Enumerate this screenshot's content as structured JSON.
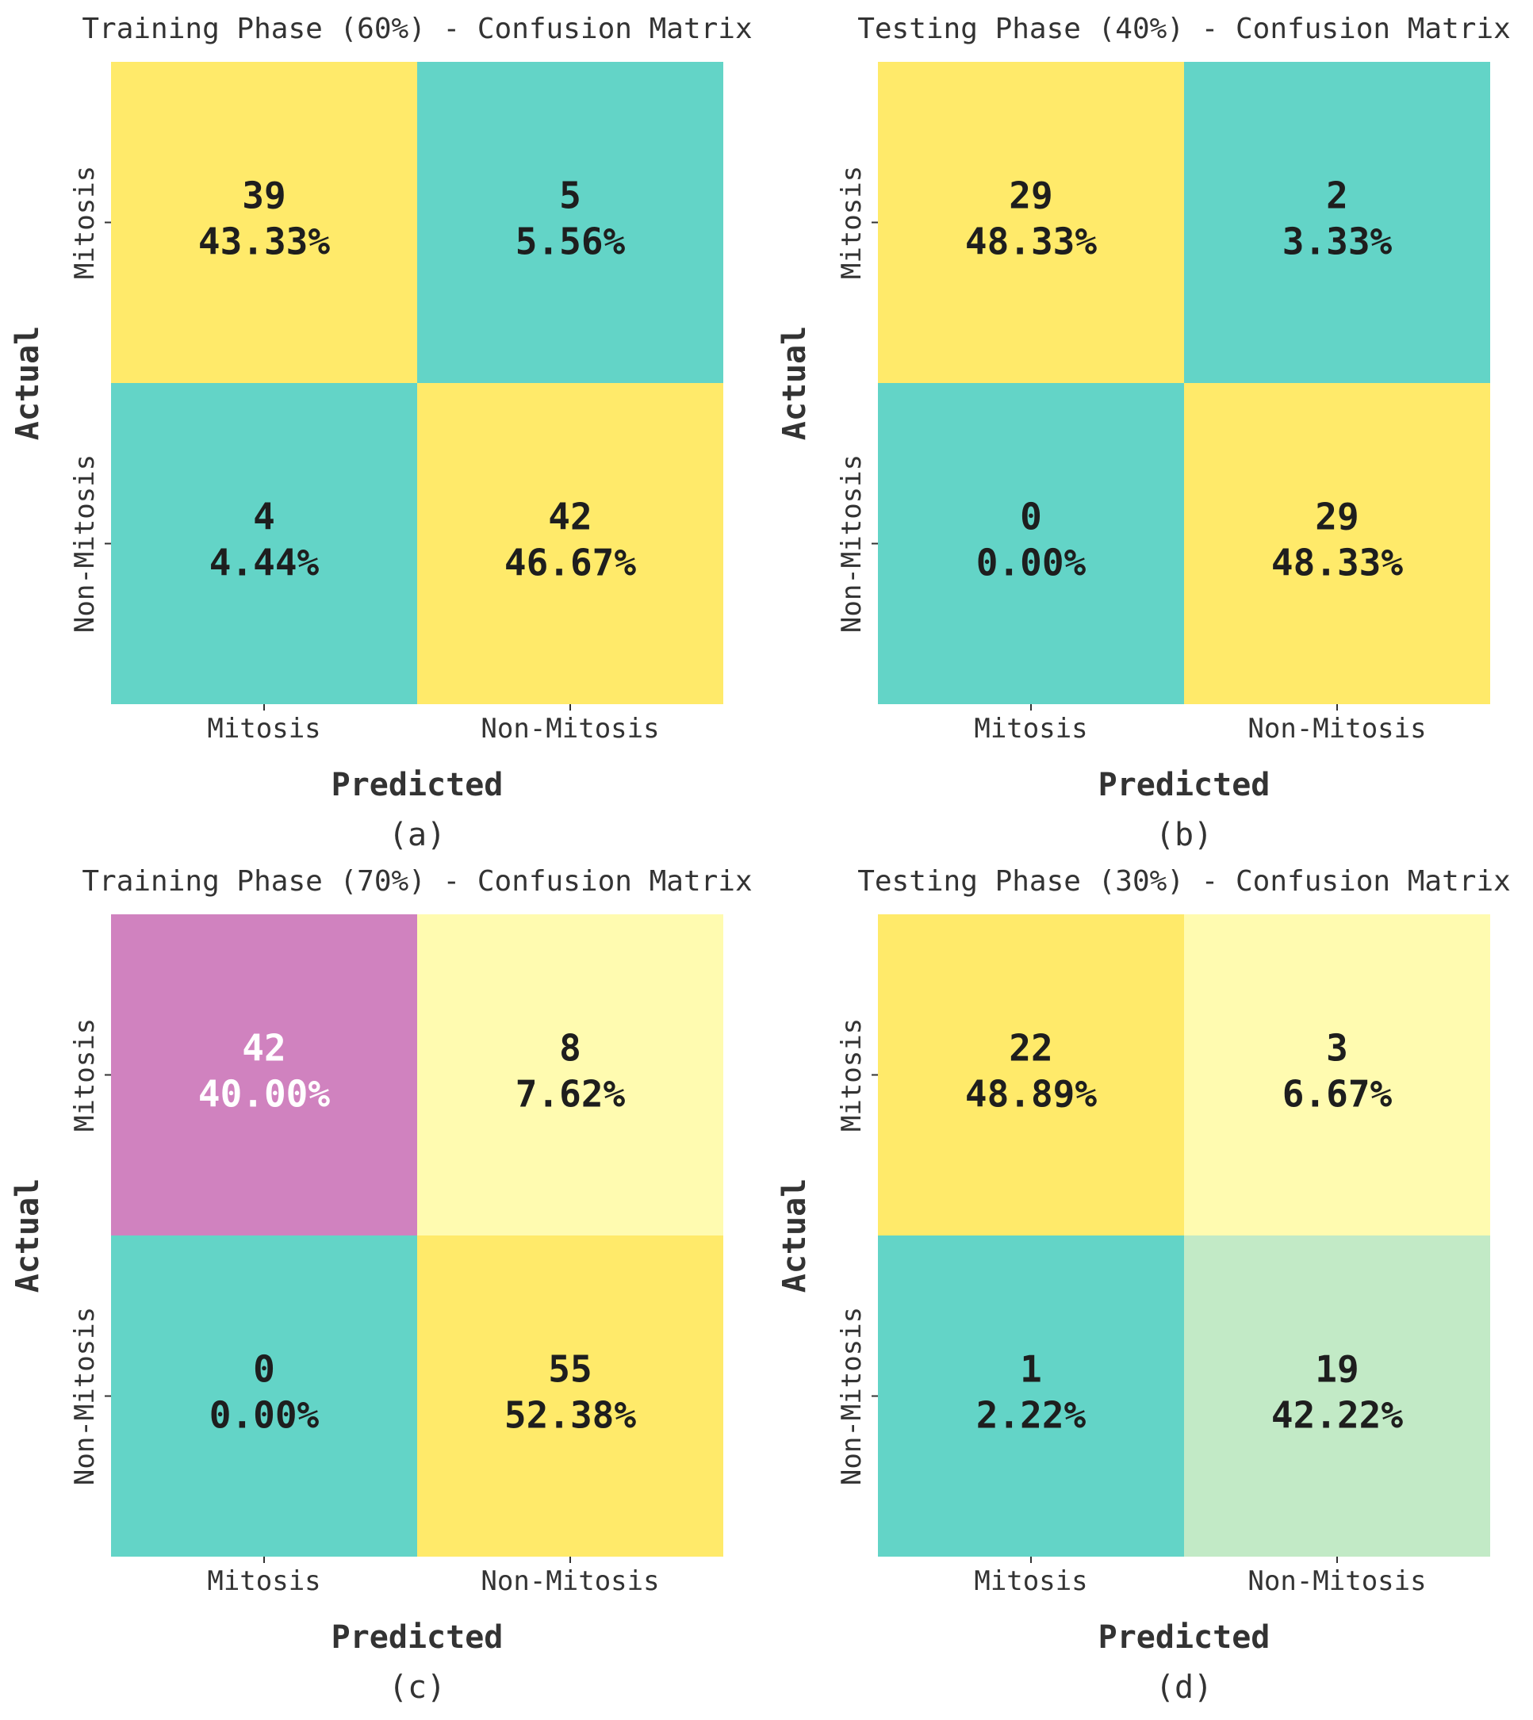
{
  "chart_data": [
    {
      "type": "heatmap",
      "title": "Training Phase (60%) - Confusion Matrix",
      "xlabel": "Predicted",
      "ylabel": "Actual",
      "x_categories": [
        "Mitosis",
        "Non-Mitosis"
      ],
      "y_categories": [
        "Mitosis",
        "Non-Mitosis"
      ],
      "counts": [
        [
          39,
          5
        ],
        [
          4,
          42
        ]
      ],
      "percentages": [
        [
          "43.33%",
          "5.56%"
        ],
        [
          "4.44%",
          "46.67%"
        ]
      ],
      "cell_colors": [
        [
          "#ffea6a",
          "#63d4c7"
        ],
        [
          "#63d4c7",
          "#ffea6a"
        ]
      ],
      "text_colors": [
        [
          "#1e1e1e",
          "#1e1e1e"
        ],
        [
          "#1e1e1e",
          "#1e1e1e"
        ]
      ],
      "caption": "(a)"
    },
    {
      "type": "heatmap",
      "title": "Testing Phase (40%) - Confusion Matrix",
      "xlabel": "Predicted",
      "ylabel": "Actual",
      "x_categories": [
        "Mitosis",
        "Non-Mitosis"
      ],
      "y_categories": [
        "Mitosis",
        "Non-Mitosis"
      ],
      "counts": [
        [
          29,
          2
        ],
        [
          0,
          29
        ]
      ],
      "percentages": [
        [
          "48.33%",
          "3.33%"
        ],
        [
          "0.00%",
          "48.33%"
        ]
      ],
      "cell_colors": [
        [
          "#ffea6a",
          "#63d4c7"
        ],
        [
          "#63d4c7",
          "#ffea6a"
        ]
      ],
      "text_colors": [
        [
          "#1e1e1e",
          "#1e1e1e"
        ],
        [
          "#1e1e1e",
          "#1e1e1e"
        ]
      ],
      "caption": "(b)"
    },
    {
      "type": "heatmap",
      "title": "Training Phase (70%) - Confusion Matrix",
      "xlabel": "Predicted",
      "ylabel": "Actual",
      "x_categories": [
        "Mitosis",
        "Non-Mitosis"
      ],
      "y_categories": [
        "Mitosis",
        "Non-Mitosis"
      ],
      "counts": [
        [
          42,
          8
        ],
        [
          0,
          55
        ]
      ],
      "percentages": [
        [
          "40.00%",
          "7.62%"
        ],
        [
          "0.00%",
          "52.38%"
        ]
      ],
      "cell_colors": [
        [
          "#d082bf",
          "#fffbb0"
        ],
        [
          "#63d4c7",
          "#ffea6a"
        ]
      ],
      "text_colors": [
        [
          "#ffffff",
          "#1e1e1e"
        ],
        [
          "#1e1e1e",
          "#1e1e1e"
        ]
      ],
      "caption": "(c)"
    },
    {
      "type": "heatmap",
      "title": "Testing Phase (30%) - Confusion Matrix",
      "xlabel": "Predicted",
      "ylabel": "Actual",
      "x_categories": [
        "Mitosis",
        "Non-Mitosis"
      ],
      "y_categories": [
        "Mitosis",
        "Non-Mitosis"
      ],
      "counts": [
        [
          22,
          3
        ],
        [
          1,
          19
        ]
      ],
      "percentages": [
        [
          "48.89%",
          "6.67%"
        ],
        [
          "2.22%",
          "42.22%"
        ]
      ],
      "cell_colors": [
        [
          "#ffea6a",
          "#fffbb0"
        ],
        [
          "#63d4c7",
          "#c2eac6"
        ]
      ],
      "text_colors": [
        [
          "#1e1e1e",
          "#1e1e1e"
        ],
        [
          "#1e1e1e",
          "#1e1e1e"
        ]
      ],
      "caption": "(d)"
    }
  ]
}
